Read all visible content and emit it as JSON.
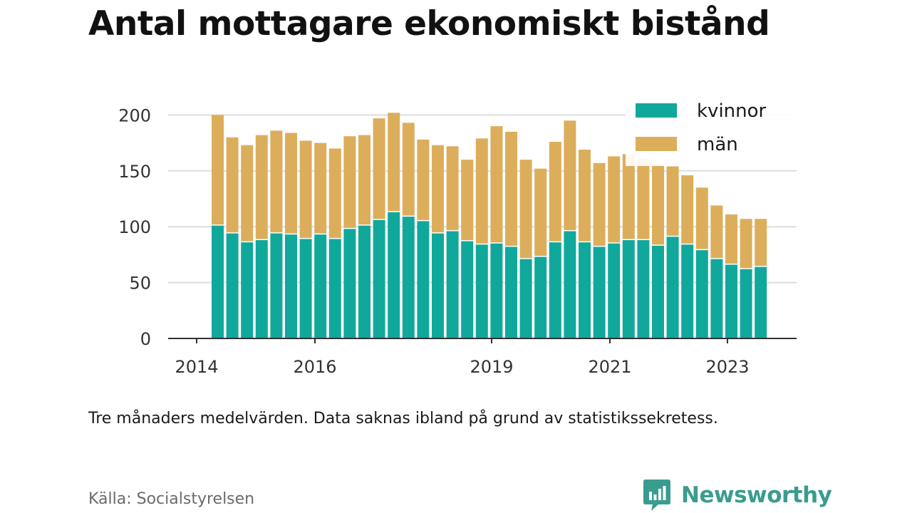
{
  "title": "Antal mottagare ekonomiskt bistånd",
  "note": "Tre månaders medelvärden. Data saknas ibland på grund av statistikssekretess.",
  "source": "Källa: Socialstyrelsen",
  "brand": "Newsworthy",
  "colors": {
    "kvinnor": "#10a89b",
    "man": "#dcae5c",
    "grid": "#dddddd",
    "axis": "#333333",
    "brand": "#3a9c8f"
  },
  "chart_data": {
    "type": "bar",
    "stacked": true,
    "x_tick_labels": [
      "2014",
      "2016",
      "2019",
      "2021",
      "2023"
    ],
    "y_ticks": [
      0,
      50,
      100,
      150,
      200
    ],
    "ylim": [
      0,
      210
    ],
    "grid": true,
    "legend_position": "top-right",
    "series": [
      {
        "name": "kvinnor",
        "values": [
          101,
          94,
          86,
          88,
          94,
          93,
          89,
          93,
          89,
          98,
          101,
          106,
          113,
          109,
          105,
          94,
          96,
          87,
          84,
          85,
          82,
          71,
          73,
          86,
          96,
          86,
          82,
          85,
          88,
          88,
          83,
          91,
          84,
          79,
          71,
          66,
          62,
          64
        ]
      },
      {
        "name": "män",
        "values": [
          99,
          86,
          87,
          94,
          92,
          91,
          88,
          82,
          81,
          83,
          81,
          91,
          89,
          84,
          73,
          79,
          76,
          73,
          95,
          105,
          103,
          89,
          79,
          90,
          99,
          83,
          75,
          78,
          77,
          73,
          73,
          63,
          62,
          56,
          48,
          45,
          45,
          43
        ]
      }
    ]
  }
}
